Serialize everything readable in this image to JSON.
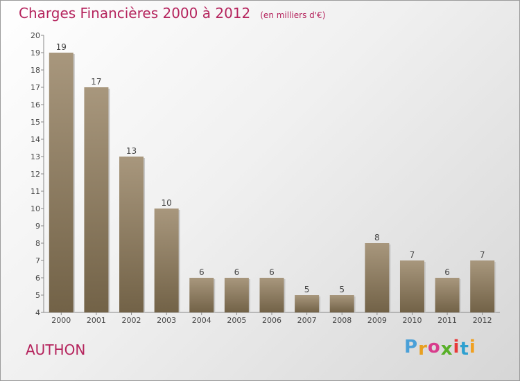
{
  "title": "Charges Financières 2000 à 2012",
  "unit_note": "(en milliers d'€)",
  "place_name": "AUTHON",
  "logo": {
    "letters": [
      "P",
      "r",
      "o",
      "x",
      "i",
      "t",
      "i"
    ],
    "colors": [
      "#4aa0d8",
      "#e8a020",
      "#d83c8c",
      "#58b028",
      "#e83838",
      "#2ea0d0",
      "#f0a020"
    ]
  },
  "colors": {
    "bar": "#8f7d63",
    "text": "#b5245d"
  },
  "chart_data": {
    "type": "bar",
    "title": "Charges Financières 2000 à 2012",
    "subtitle": "(en milliers d'€)",
    "categories": [
      "2000",
      "2001",
      "2002",
      "2003",
      "2004",
      "2005",
      "2006",
      "2007",
      "2008",
      "2009",
      "2010",
      "2011",
      "2012"
    ],
    "values": [
      19,
      17,
      13,
      10,
      6,
      6,
      6,
      5,
      5,
      8,
      7,
      6,
      7
    ],
    "ylim": [
      4,
      20
    ],
    "yticks": [
      4,
      5,
      6,
      7,
      8,
      9,
      10,
      11,
      12,
      13,
      14,
      15,
      16,
      17,
      18,
      19,
      20
    ],
    "grid": false,
    "data_labels": true
  }
}
